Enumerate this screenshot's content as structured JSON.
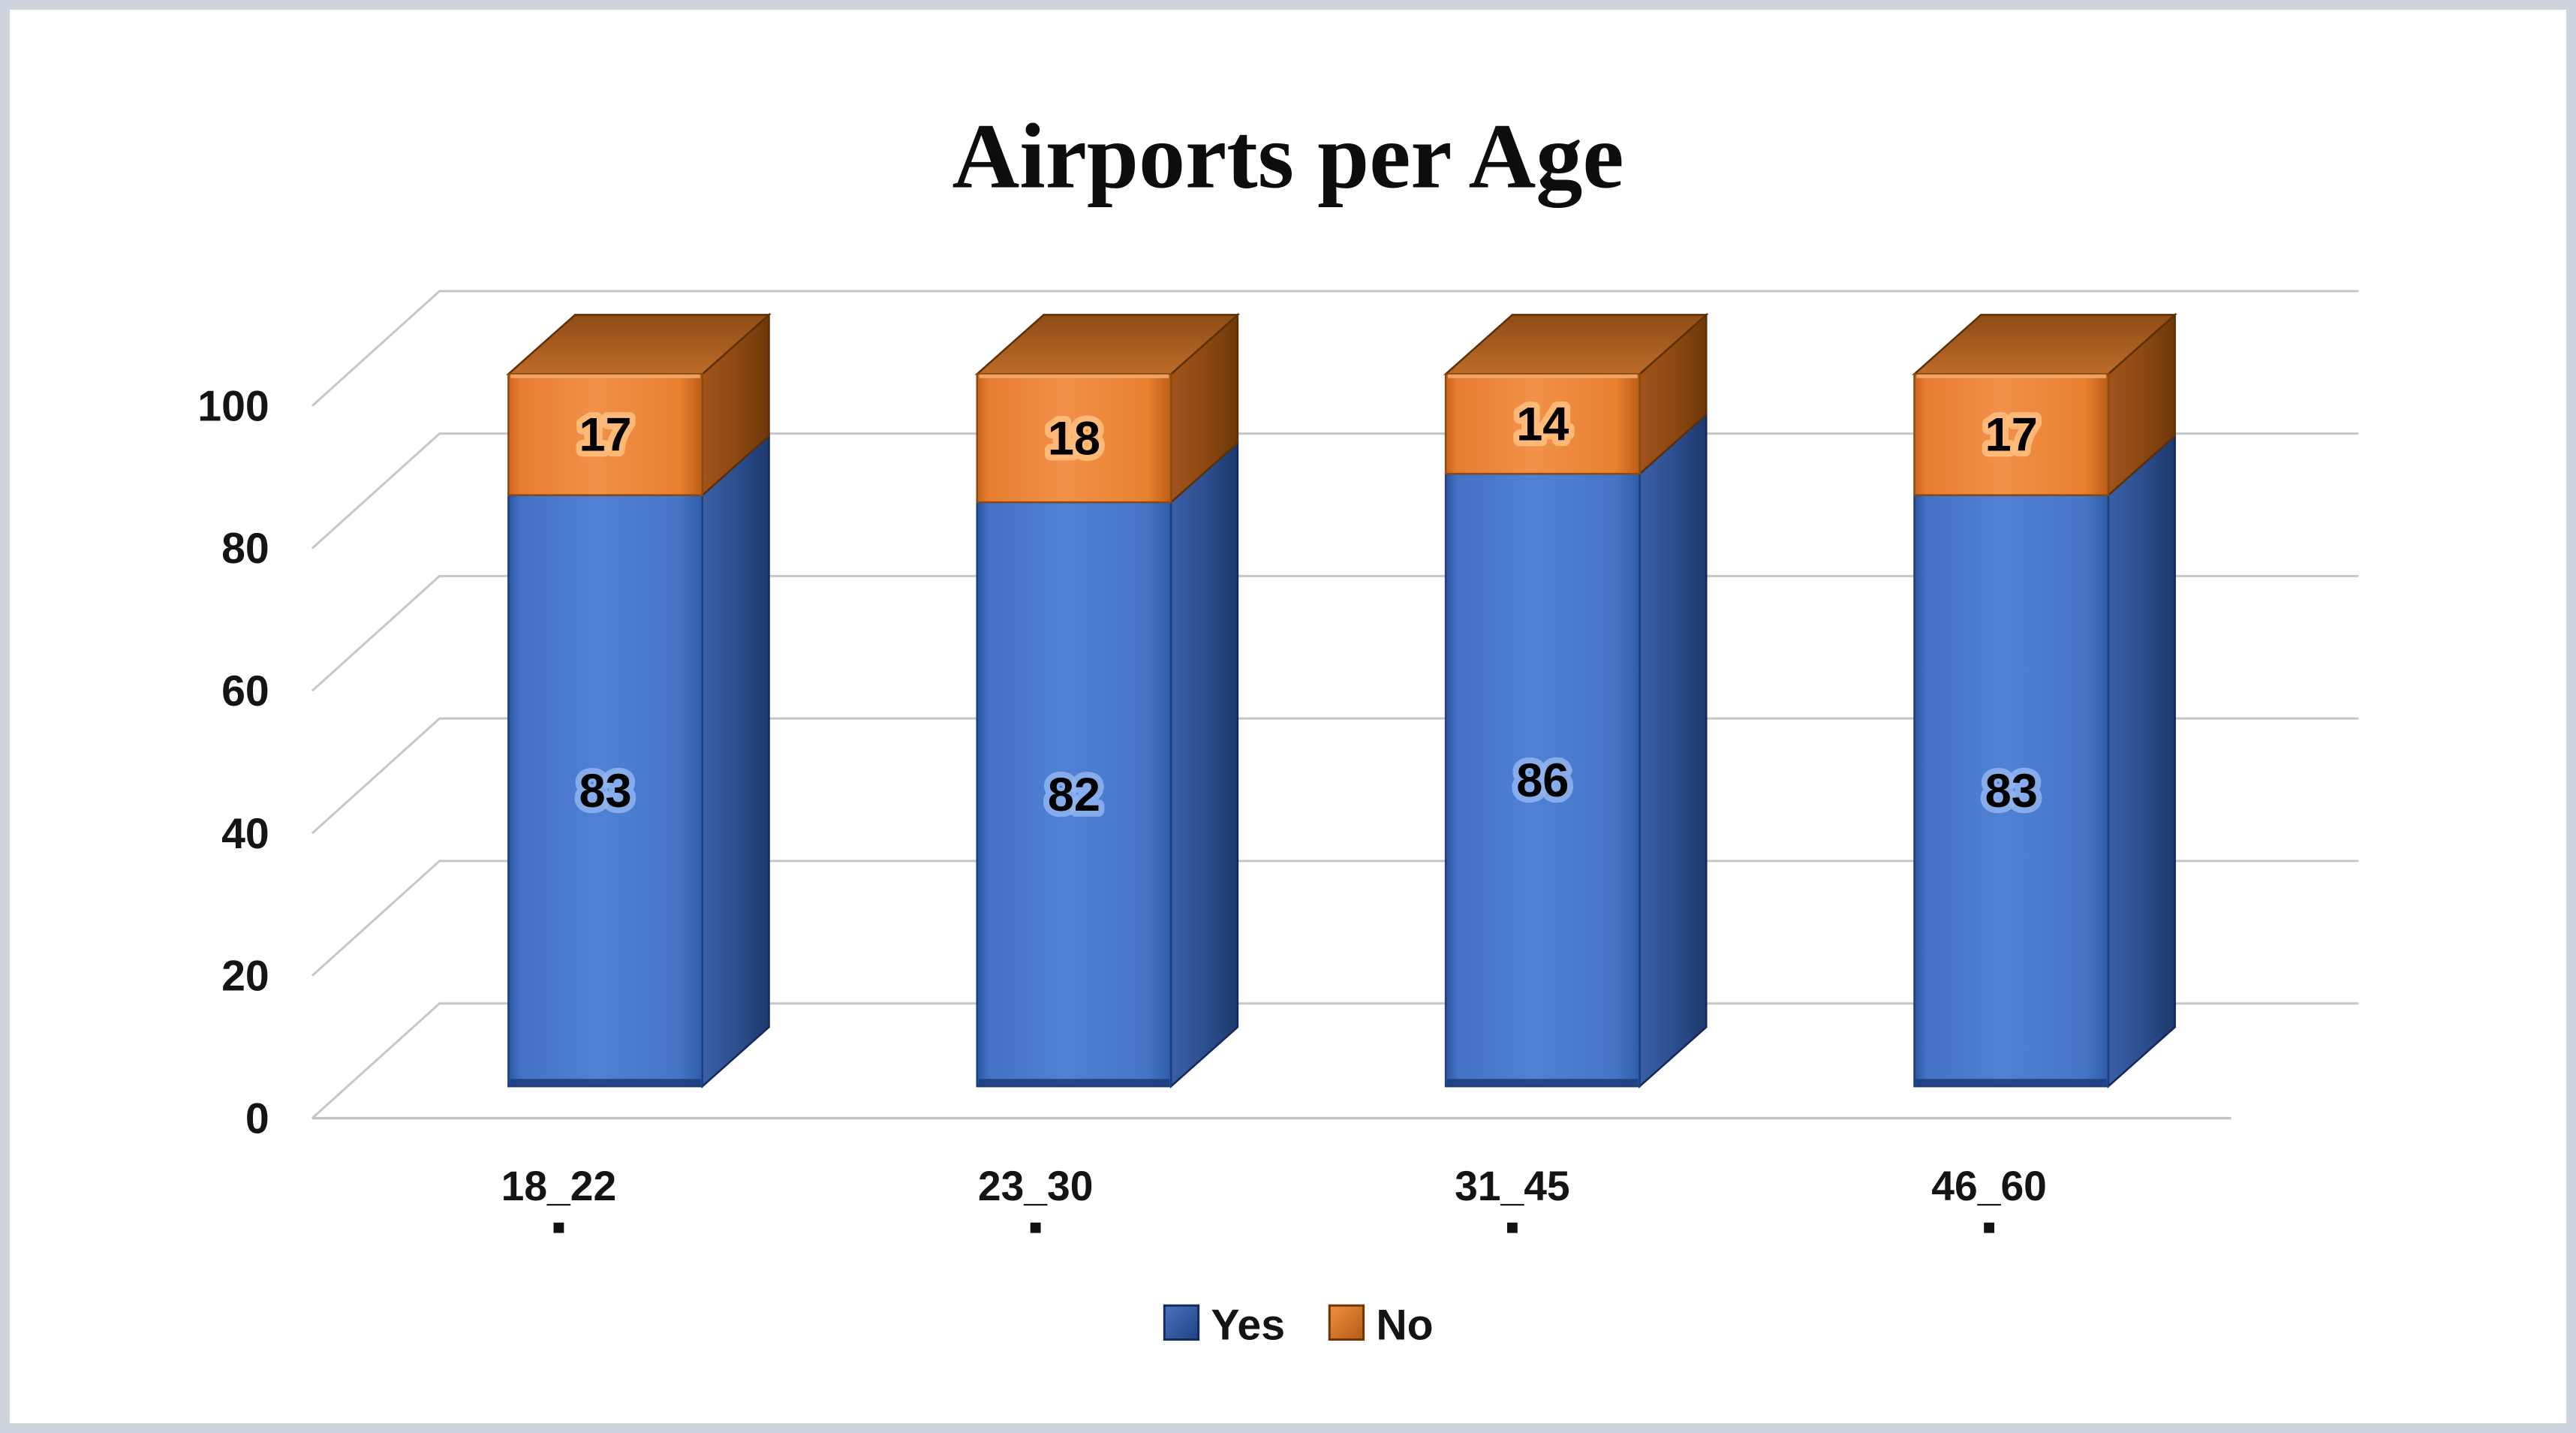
{
  "frame": {
    "border_color": "#ccd3dd",
    "background_color": "#ffffff"
  },
  "chart_data": {
    "type": "bar",
    "subtype": "stacked-column-3d",
    "title": "Airports per Age",
    "categories": [
      "18_22",
      "23_30",
      "31_45",
      "46_60"
    ],
    "series": [
      {
        "name": "Yes",
        "color": "#4a78c8",
        "side_color": "#2c4d8d",
        "values": [
          83,
          82,
          86,
          83
        ]
      },
      {
        "name": "No",
        "color": "#ec7d2f",
        "side_color": "#8a4811",
        "values": [
          17,
          18,
          14,
          17
        ]
      }
    ],
    "value_axis": {
      "min": 0,
      "max": 100,
      "step": 20,
      "tick_labels": [
        "0",
        "20",
        "40",
        "60",
        "80",
        "100"
      ]
    },
    "data_labels": {
      "visible": true,
      "values_bottom": [
        83,
        82,
        86,
        83
      ],
      "values_top": [
        17,
        18,
        14,
        17
      ]
    },
    "legend": {
      "position": "bottom",
      "entries": [
        "Yes",
        "No"
      ]
    },
    "grid_color": "#c3c7cd",
    "gridlines": "major-horizontal-3d"
  }
}
